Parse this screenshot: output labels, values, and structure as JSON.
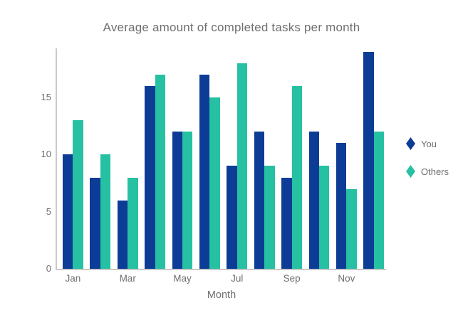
{
  "chart_data": {
    "type": "bar",
    "title": "Average amount of completed tasks per month",
    "xlabel": "Month",
    "ylabel": "",
    "categories": [
      "Jan",
      "Feb",
      "Mar",
      "Apr",
      "May",
      "Jun",
      "Jul",
      "Aug",
      "Sep",
      "Oct",
      "Nov",
      "Dec"
    ],
    "x_tick_labels": [
      "Jan",
      "Mar",
      "May",
      "Jul",
      "Sep",
      "Nov"
    ],
    "series": [
      {
        "name": "You",
        "color": "#0c3c96",
        "values": [
          10,
          8,
          6,
          16,
          12,
          17,
          9,
          12,
          8,
          12,
          11,
          19
        ]
      },
      {
        "name": "Others",
        "color": "#26c0a2",
        "values": [
          13,
          10,
          8,
          17,
          12,
          15,
          18,
          9,
          16,
          9,
          7,
          12
        ]
      }
    ],
    "ylim": [
      0,
      19.3
    ],
    "yticks": [
      0,
      5,
      10,
      15
    ],
    "grid": false,
    "legend_position": "right",
    "marker_shape": "diamond"
  },
  "colors": {
    "background": "#ffffff",
    "axis_line": "#c9c9c9",
    "text": "#6f6f6f"
  }
}
